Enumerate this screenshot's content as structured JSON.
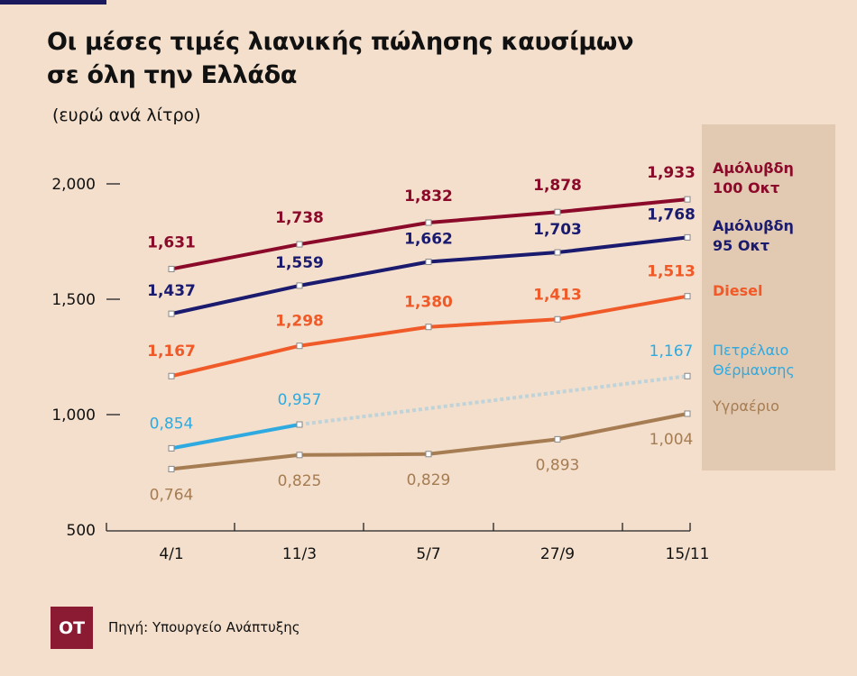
{
  "title_line1": "Οι μέσες τιμές λιανικής πώλησης καυσίμων",
  "title_line2": "σε όλη την Ελλάδα",
  "subtitle": "(ευρώ ανά λίτρο)",
  "source": "Πηγή: Υπουργείο Ανάπτυξης",
  "logo_text": "OT",
  "chart_data": {
    "type": "line",
    "categories": [
      "4/1",
      "11/3",
      "5/7",
      "27/9",
      "15/11"
    ],
    "y_ticks": [
      2.0,
      1.5,
      1.0,
      0.5
    ],
    "y_tick_labels": [
      "2,000",
      "1,500",
      "1,000",
      "500"
    ],
    "ylim": [
      0.5,
      2.0
    ],
    "grid": false,
    "legend_placement": "right",
    "series": [
      {
        "name": "Αμόλυβδη 100 Οκτ",
        "legend_lines": [
          "Αμόλυβδη",
          "100 Οκτ"
        ],
        "color": "#8b0a2a",
        "values": [
          1.631,
          1.738,
          1.832,
          1.878,
          1.933
        ],
        "labels": [
          "1,631",
          "1,738",
          "1,832",
          "1,878",
          "1,933"
        ]
      },
      {
        "name": "Αμόλυβδη 95 Οκτ",
        "legend_lines": [
          "Αμόλυβδη",
          "95 Οκτ"
        ],
        "color": "#1a1a6e",
        "values": [
          1.437,
          1.559,
          1.662,
          1.703,
          1.768
        ],
        "labels": [
          "1,437",
          "1,559",
          "1,662",
          "1,703",
          "1,768"
        ]
      },
      {
        "name": "Diesel",
        "legend_lines": [
          "Diesel"
        ],
        "color": "#f05a28",
        "values": [
          1.167,
          1.298,
          1.38,
          1.413,
          1.513
        ],
        "labels": [
          "1,167",
          "1,298",
          "1,380",
          "1,413",
          "1,513"
        ]
      },
      {
        "name": "Πετρέλαιο Θέρμανσης",
        "legend_lines": [
          "Πετρέλαιο",
          "Θέρμανσης"
        ],
        "color": "#2eaae1",
        "values": [
          0.854,
          0.957,
          null,
          null,
          1.167
        ],
        "labels": [
          "0,854",
          "0,957",
          "",
          "",
          "1,167"
        ],
        "gap_style": "dotted"
      },
      {
        "name": "Υγραέριο",
        "legend_lines": [
          "Υγραέριο"
        ],
        "color": "#a67c52",
        "values": [
          0.764,
          0.825,
          0.829,
          0.893,
          1.004
        ],
        "labels": [
          "0,764",
          "0,825",
          "0,829",
          "0,893",
          "1,004"
        ]
      }
    ]
  }
}
